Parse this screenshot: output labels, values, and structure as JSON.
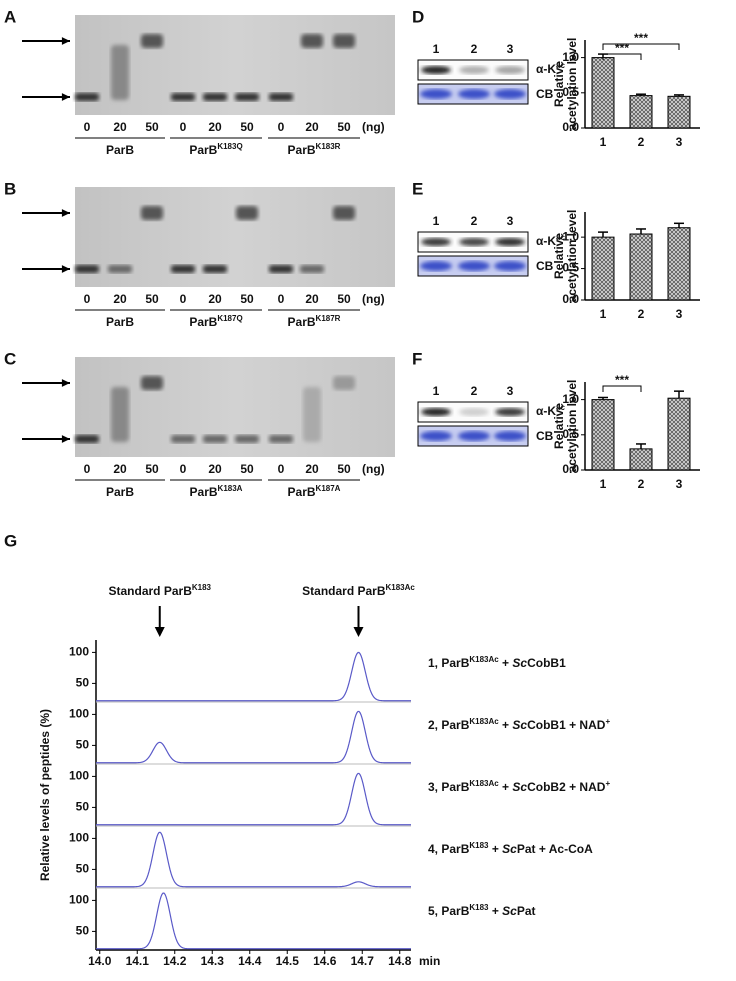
{
  "gels": [
    {
      "panel": "A",
      "lanes": [
        "0",
        "20",
        "50",
        "0",
        "20",
        "50",
        "0",
        "20",
        "50"
      ],
      "unit": "(ng)",
      "groups": [
        [
          {
            "t": "ParB"
          }
        ],
        [
          {
            "t": "ParB"
          },
          {
            "t": "K183Q",
            "sup": true
          }
        ],
        [
          {
            "t": "ParB"
          },
          {
            "t": "K183R",
            "sup": true
          }
        ]
      ]
    },
    {
      "panel": "B",
      "lanes": [
        "0",
        "20",
        "50",
        "0",
        "20",
        "50",
        "0",
        "20",
        "50"
      ],
      "unit": "(ng)",
      "groups": [
        [
          {
            "t": "ParB"
          }
        ],
        [
          {
            "t": "ParB"
          },
          {
            "t": "K187Q",
            "sup": true
          }
        ],
        [
          {
            "t": "ParB"
          },
          {
            "t": "K187R",
            "sup": true
          }
        ]
      ]
    },
    {
      "panel": "C",
      "lanes": [
        "0",
        "20",
        "50",
        "0",
        "20",
        "50",
        "0",
        "20",
        "50"
      ],
      "unit": "(ng)",
      "groups": [
        [
          {
            "t": "ParB"
          }
        ],
        [
          {
            "t": "ParB"
          },
          {
            "t": "K183A",
            "sup": true
          }
        ],
        [
          {
            "t": "ParB"
          },
          {
            "t": "K187A",
            "sup": true
          }
        ]
      ]
    }
  ],
  "blots": [
    {
      "panel": "D",
      "lanes": [
        "1",
        "2",
        "3"
      ],
      "rows": [
        [
          {
            "t": "α-K"
          },
          {
            "t": "ac",
            "sup": true
          }
        ],
        [
          {
            "t": "CB"
          }
        ]
      ]
    },
    {
      "panel": "E",
      "lanes": [
        "1",
        "2",
        "3"
      ],
      "rows": [
        [
          {
            "t": "α-K"
          },
          {
            "t": "ac",
            "sup": true
          }
        ],
        [
          {
            "t": "CB"
          }
        ]
      ]
    },
    {
      "panel": "F",
      "lanes": [
        "1",
        "2",
        "3"
      ],
      "rows": [
        [
          {
            "t": "α-K"
          },
          {
            "t": "ac",
            "sup": true
          }
        ],
        [
          {
            "t": "CB"
          }
        ]
      ]
    }
  ],
  "chart_data": [
    {
      "type": "bar",
      "y_label": [
        "Relative",
        "acetylation level"
      ],
      "categories": [
        "1",
        "2",
        "3"
      ],
      "values": [
        1.0,
        0.46,
        0.45
      ],
      "errors": [
        0.05,
        0.02,
        0.02
      ],
      "ylim": [
        0,
        1.25
      ],
      "yticks": [
        {
          "value": 0,
          "label": "0.0"
        },
        {
          "value": 0.5,
          "label": "0.5"
        },
        {
          "value": 1,
          "label": "1.0"
        }
      ],
      "significance": [
        {
          "pair": [
            0,
            1
          ],
          "label": "***"
        },
        {
          "pair": [
            0,
            2
          ],
          "label": "***"
        }
      ],
      "color": "#666666"
    },
    {
      "type": "bar",
      "y_label": [
        "Relative",
        "acetylation level"
      ],
      "categories": [
        "1",
        "2",
        "3"
      ],
      "values": [
        1.0,
        1.05,
        1.15
      ],
      "errors": [
        0.08,
        0.08,
        0.07
      ],
      "ylim": [
        0,
        1.4
      ],
      "yticks": [
        {
          "value": 0,
          "label": "0.0"
        },
        {
          "value": 0.5,
          "label": "0.5"
        },
        {
          "value": 1,
          "label": "1.0"
        }
      ],
      "significance": [],
      "color": "#666666"
    },
    {
      "type": "bar",
      "y_label": [
        "Relative",
        "acetylation level"
      ],
      "categories": [
        "1",
        "2",
        "3"
      ],
      "values": [
        1.0,
        0.3,
        1.02
      ],
      "errors": [
        0.03,
        0.07,
        0.1
      ],
      "ylim": [
        0,
        1.25
      ],
      "yticks": [
        {
          "value": 0,
          "label": "0.0"
        },
        {
          "value": 0.5,
          "label": "0.5"
        },
        {
          "value": 1,
          "label": "1.0"
        }
      ],
      "significance": [
        {
          "pair": [
            0,
            1
          ],
          "label": "***"
        }
      ],
      "color": "#666666"
    },
    {
      "type": "chromatogram",
      "panel": "G",
      "y_label": "Relative levels of peptides (%)",
      "x_unit": "min",
      "xlim": [
        13.99,
        14.83
      ],
      "xticks": [
        {
          "value": 14,
          "label": "14.0"
        },
        14.1,
        14.2,
        14.3,
        14.4,
        14.5,
        14.6,
        14.7,
        {
          "value": 14.8,
          "label": "14.8"
        }
      ],
      "ylim": [
        20,
        120
      ],
      "yticks": [
        50,
        100
      ],
      "baseline": 22,
      "peak_width": 0.018,
      "color": "#5a5ac8",
      "annotations": [
        {
          "x": 14.16,
          "text": [
            {
              "t": "Standard ParB"
            },
            {
              "t": "K183",
              "sup": true
            }
          ]
        },
        {
          "x": 14.69,
          "text": [
            {
              "t": "Standard ParB"
            },
            {
              "t": "K183Ac",
              "sup": true
            }
          ]
        }
      ],
      "series": [
        {
          "name": [
            {
              "t": "1, ParB"
            },
            {
              "t": "K183Ac",
              "sup": true
            },
            {
              "t": " + "
            },
            {
              "t": "Sc",
              "it": true
            },
            {
              "t": "CobB1"
            }
          ],
          "peaks": [
            {
              "x": 14.69,
              "height": 100
            }
          ]
        },
        {
          "name": [
            {
              "t": "2, ParB"
            },
            {
              "t": "K183Ac",
              "sup": true
            },
            {
              "t": " + "
            },
            {
              "t": "Sc",
              "it": true
            },
            {
              "t": "CobB1 + NAD"
            },
            {
              "t": "+",
              "sup": true
            }
          ],
          "peaks": [
            {
              "x": 14.16,
              "height": 55
            },
            {
              "x": 14.69,
              "height": 105
            }
          ]
        },
        {
          "name": [
            {
              "t": "3, ParB"
            },
            {
              "t": "K183Ac",
              "sup": true
            },
            {
              "t": " + "
            },
            {
              "t": "Sc",
              "it": true
            },
            {
              "t": "CobB2 + NAD"
            },
            {
              "t": "+",
              "sup": true
            }
          ],
          "peaks": [
            {
              "x": 14.69,
              "height": 105
            }
          ]
        },
        {
          "name": [
            {
              "t": "4, ParB"
            },
            {
              "t": "K183",
              "sup": true
            },
            {
              "t": " + "
            },
            {
              "t": "Sc",
              "it": true
            },
            {
              "t": "Pat + Ac-CoA"
            }
          ],
          "peaks": [
            {
              "x": 14.16,
              "height": 110
            },
            {
              "x": 14.69,
              "height": 30
            }
          ]
        },
        {
          "name": [
            {
              "t": "5, ParB"
            },
            {
              "t": "K183",
              "sup": true
            },
            {
              "t": " + "
            },
            {
              "t": "Sc",
              "it": true
            },
            {
              "t": "Pat"
            }
          ],
          "peaks": [
            {
              "x": 14.17,
              "height": 112
            }
          ]
        }
      ]
    }
  ]
}
